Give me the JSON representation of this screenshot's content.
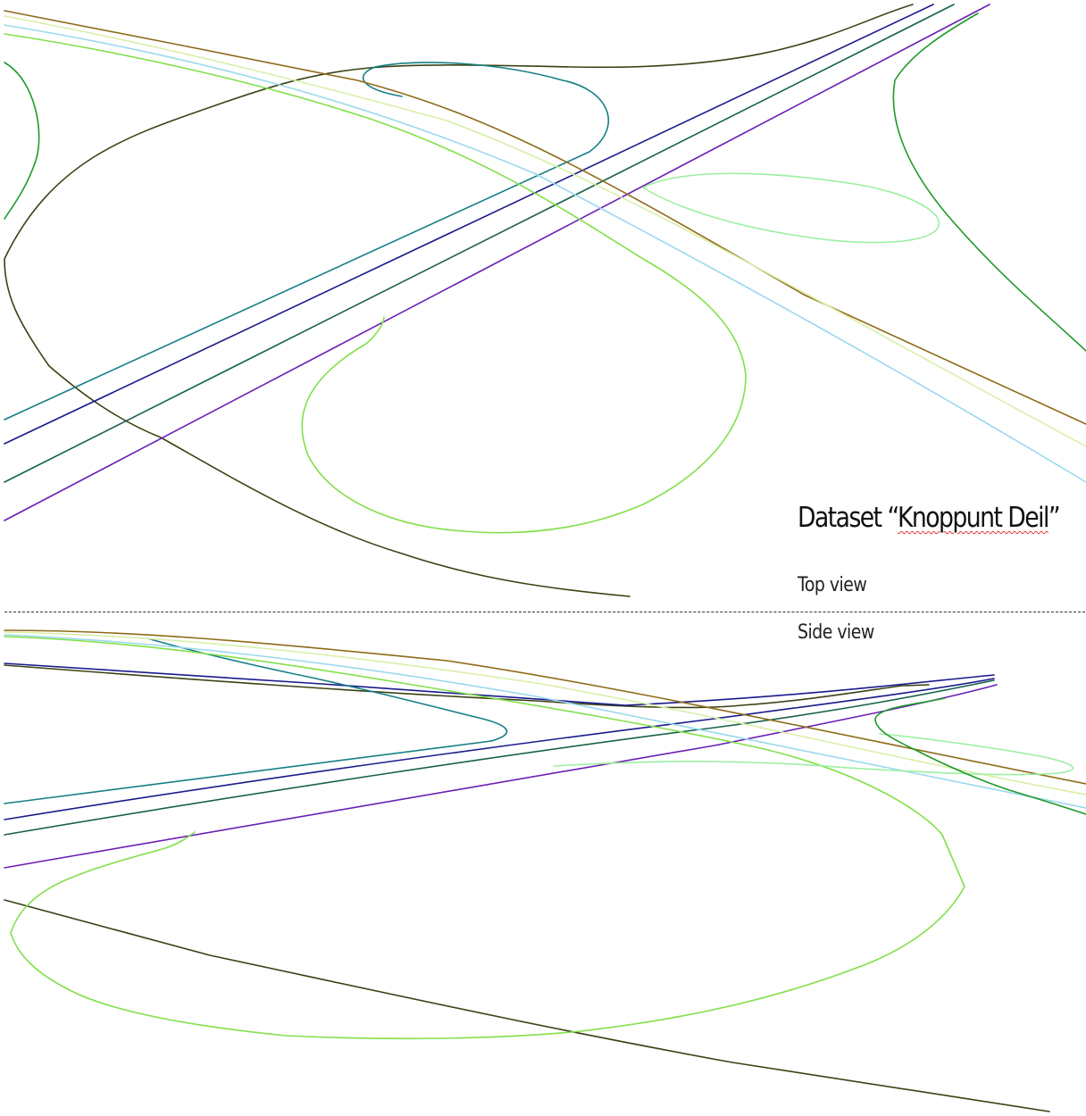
{
  "dataset": {
    "title_prefix": "Dataset “",
    "title_name": "Knoppunt Deil",
    "title_suffix": "”"
  },
  "views": {
    "top_label": "Top view",
    "side_label": "Side view"
  },
  "colors": {
    "dark_olive": "#3b4215",
    "navy": "#1a1a8c",
    "teal": "#157f84",
    "dark_green": "#16624a",
    "purple": "#6a1fb5",
    "brown": "#8e6a17",
    "pale_yellow_green": "#d8efa8",
    "light_blue": "#9ad9ee",
    "light_green": "#82e04a",
    "green": "#1f9a2a",
    "pale_green": "#9af0a0"
  }
}
